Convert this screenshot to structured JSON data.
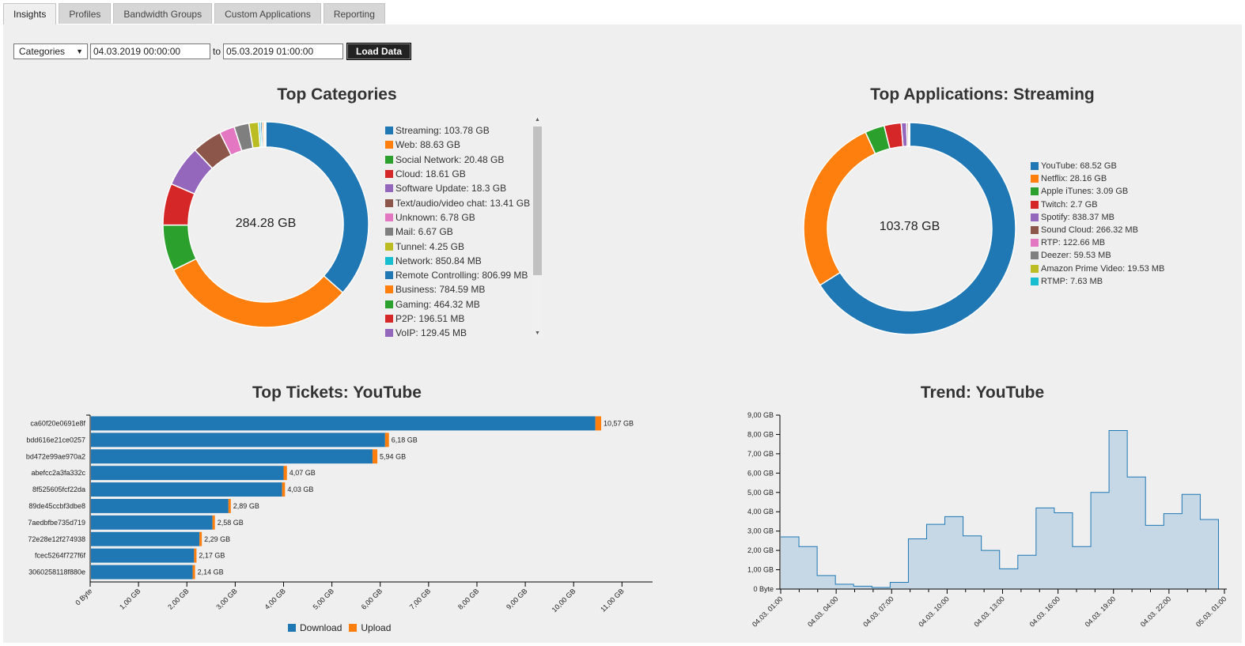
{
  "tabs": [
    {
      "label": "Insights",
      "active": true
    },
    {
      "label": "Profiles",
      "active": false
    },
    {
      "label": "Bandwidth Groups",
      "active": false
    },
    {
      "label": "Custom Applications",
      "active": false
    },
    {
      "label": "Reporting",
      "active": false
    }
  ],
  "controls": {
    "mode": "Categories",
    "from": "04.03.2019 00:00:00",
    "to_label": "to",
    "to": "05.03.2019 01:00:00",
    "load_label": "Load Data"
  },
  "colors": [
    "#1f77b4",
    "#ff7f0e",
    "#2ca02c",
    "#d62728",
    "#9467bd",
    "#8c564b",
    "#e377c2",
    "#7f7f7f",
    "#bcbd22",
    "#17becf"
  ],
  "chart_data": [
    {
      "id": "categories",
      "type": "pie",
      "title": "Top Categories",
      "total": "284.28 GB",
      "slices": [
        {
          "label": "Streaming",
          "value": 103.78,
          "display": "Streaming: 103.78 GB"
        },
        {
          "label": "Web",
          "value": 88.63,
          "display": "Web: 88.63 GB"
        },
        {
          "label": "Social Network",
          "value": 20.48,
          "display": "Social Network: 20.48 GB"
        },
        {
          "label": "Cloud",
          "value": 18.61,
          "display": "Cloud: 18.61 GB"
        },
        {
          "label": "Software Update",
          "value": 18.3,
          "display": "Software Update: 18.3 GB"
        },
        {
          "label": "Text/audio/video chat",
          "value": 13.41,
          "display": "Text/audio/video chat: 13.41 GB"
        },
        {
          "label": "Unknown",
          "value": 6.78,
          "display": "Unknown: 6.78 GB"
        },
        {
          "label": "Mail",
          "value": 6.67,
          "display": "Mail: 6.67 GB"
        },
        {
          "label": "Tunnel",
          "value": 4.25,
          "display": "Tunnel: 4.25 GB"
        },
        {
          "label": "Network",
          "value": 0.85084,
          "display": "Network: 850.84 MB"
        },
        {
          "label": "Remote Controlling",
          "value": 0.80699,
          "display": "Remote Controlling: 806.99 MB"
        },
        {
          "label": "Business",
          "value": 0.78459,
          "display": "Business: 784.59 MB"
        },
        {
          "label": "Gaming",
          "value": 0.46432,
          "display": "Gaming: 464.32 MB"
        },
        {
          "label": "P2P",
          "value": 0.19651,
          "display": "P2P: 196.51 MB"
        },
        {
          "label": "VoIP",
          "value": 0.12945,
          "display": "VoIP: 129.45 MB"
        }
      ]
    },
    {
      "id": "applications",
      "type": "pie",
      "title": "Top Applications: Streaming",
      "total": "103.78 GB",
      "slices": [
        {
          "label": "YouTube",
          "value": 68.52,
          "display": "YouTube: 68.52 GB"
        },
        {
          "label": "Netflix",
          "value": 28.16,
          "display": "Netflix: 28.16 GB"
        },
        {
          "label": "Apple iTunes",
          "value": 3.09,
          "display": "Apple iTunes: 3.09 GB"
        },
        {
          "label": "Twitch",
          "value": 2.7,
          "display": "Twitch: 2.7 GB"
        },
        {
          "label": "Spotify",
          "value": 0.83837,
          "display": "Spotify: 838.37 MB"
        },
        {
          "label": "Sound Cloud",
          "value": 0.26632,
          "display": "Sound Cloud: 266.32 MB"
        },
        {
          "label": "RTP",
          "value": 0.12266,
          "display": "RTP: 122.66 MB"
        },
        {
          "label": "Deezer",
          "value": 0.05953,
          "display": "Deezer: 59.53 MB"
        },
        {
          "label": "Amazon Prime Video",
          "value": 0.01953,
          "display": "Amazon Prime Video: 19.53 MB"
        },
        {
          "label": "RTMP",
          "value": 0.00763,
          "display": "RTMP: 7.63 MB"
        }
      ]
    },
    {
      "id": "tickets",
      "type": "bar",
      "orientation": "horizontal",
      "stacked": true,
      "title": "Top Tickets: YouTube",
      "categories": [
        "ca60f20e0691e8f",
        "bdd616e21ce0257",
        "bd472e99ae970a2",
        "abefcc2a3fa332c",
        "8f525605fcf22da",
        "89de45ccbf3dbe8",
        "7aedbfbe735d719",
        "72e28e12f274938",
        "fcec5264f727f6f",
        "3060258118f880e"
      ],
      "series": [
        {
          "name": "Download",
          "values": [
            10.45,
            6.1,
            5.84,
            4.0,
            3.97,
            2.86,
            2.53,
            2.26,
            2.15,
            2.12
          ]
        },
        {
          "name": "Upload",
          "values": [
            0.12,
            0.08,
            0.1,
            0.07,
            0.06,
            0.03,
            0.05,
            0.03,
            0.02,
            0.02
          ]
        }
      ],
      "totals": [
        "10,57 GB",
        "6,18 GB",
        "5,94 GB",
        "4,07 GB",
        "4,03 GB",
        "2,89 GB",
        "2,58 GB",
        "2,29 GB",
        "2,17 GB",
        "2,14 GB"
      ],
      "xlim": [
        0,
        11.6
      ],
      "xticks": [
        0,
        1,
        2,
        3,
        4,
        5,
        6,
        7,
        8,
        9,
        10,
        11
      ],
      "xtick_labels": [
        "0 Byte",
        "1,00 GB",
        "2,00 GB",
        "3,00 GB",
        "4,00 GB",
        "5,00 GB",
        "6,00 GB",
        "7,00 GB",
        "8,00 GB",
        "9,00 GB",
        "10,00 GB",
        "11,00 GB"
      ],
      "legend": "bottom"
    },
    {
      "id": "trend",
      "type": "area",
      "step": true,
      "title": "Trend: YouTube",
      "values": [
        2.7,
        2.2,
        0.7,
        0.25,
        0.15,
        0.08,
        0.35,
        2.6,
        3.35,
        3.75,
        2.75,
        2.0,
        1.05,
        1.75,
        4.2,
        3.95,
        2.2,
        5.0,
        8.2,
        5.8,
        3.3,
        3.9,
        4.9,
        3.6
      ],
      "ylim": [
        0,
        9
      ],
      "yticks": [
        0,
        1,
        2,
        3,
        4,
        5,
        6,
        7,
        8,
        9
      ],
      "ytick_labels": [
        "0 Byte",
        "1,00 GB",
        "2,00 GB",
        "3,00 GB",
        "4,00 GB",
        "5,00 GB",
        "6,00 GB",
        "7,00 GB",
        "8,00 GB",
        "9,00 GB"
      ],
      "xtick_labels": [
        "04.03. 01:00",
        "04.03. 04:00",
        "04.03. 07:00",
        "04.03. 10:00",
        "04.03. 13:00",
        "04.03. 16:00",
        "04.03. 19:00",
        "04.03. 22:00",
        "05.03. 01:00"
      ]
    }
  ]
}
